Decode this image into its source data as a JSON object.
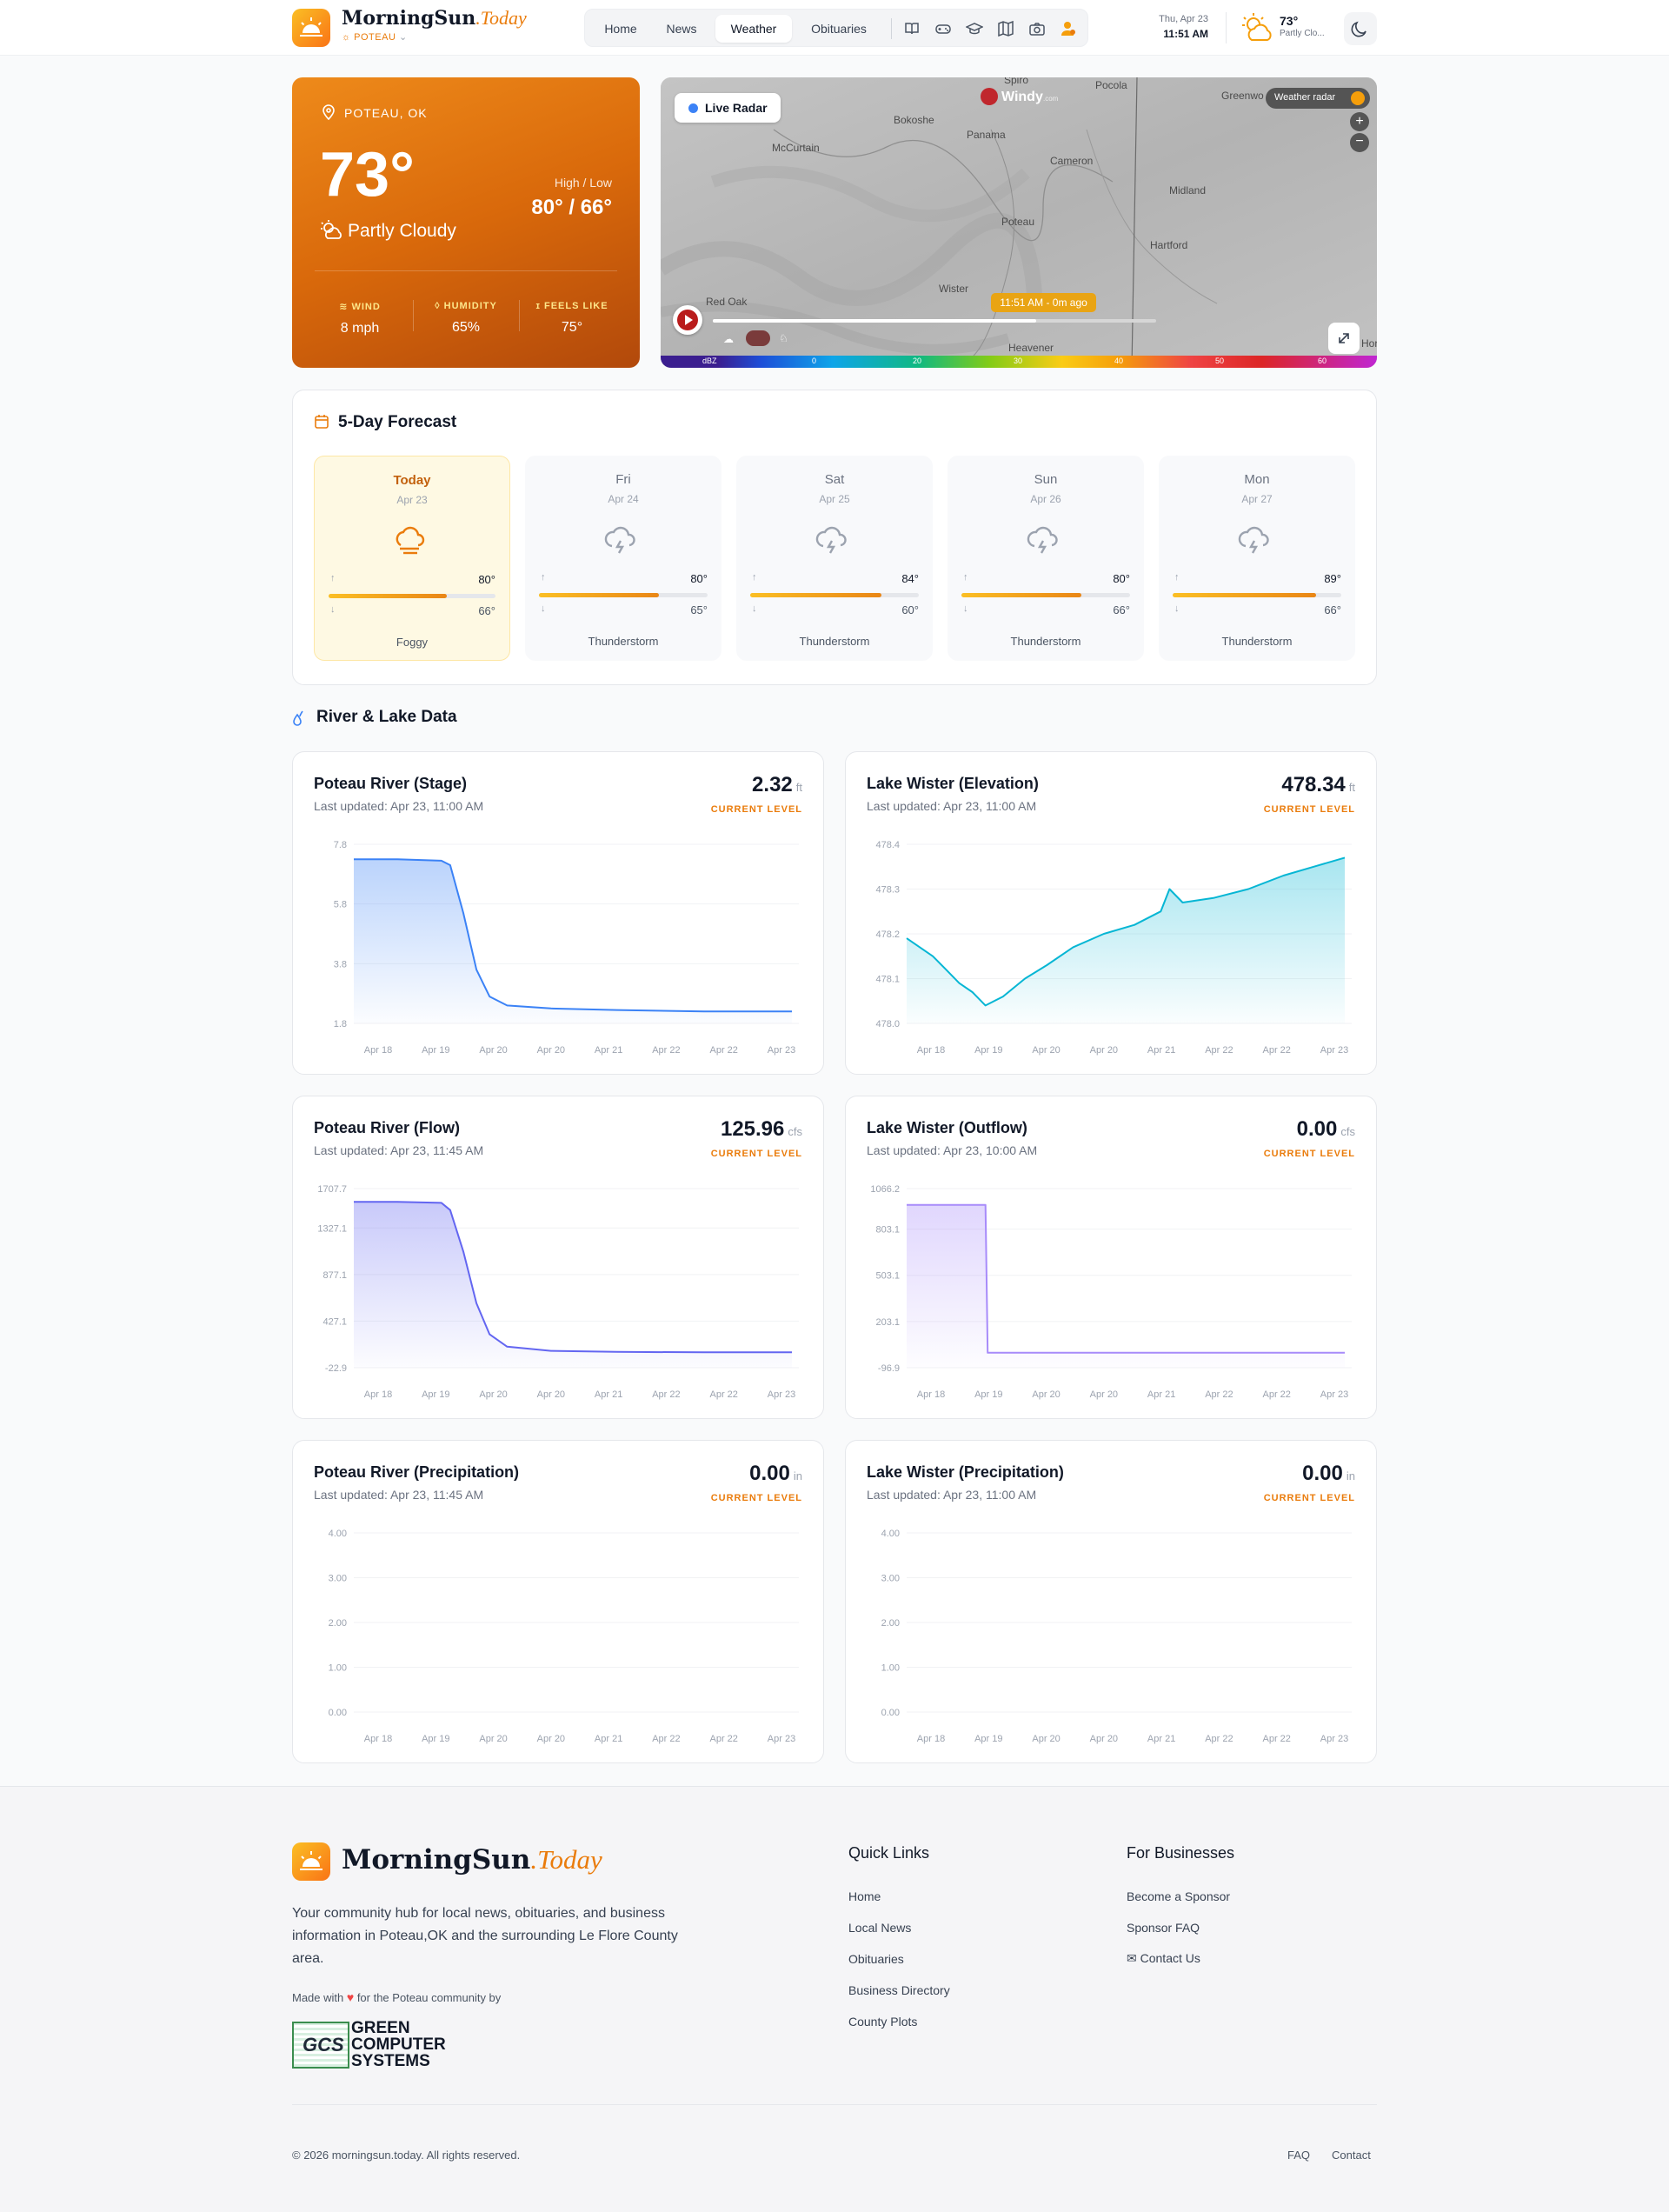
{
  "header": {
    "brand_main": "MorningSun",
    "brand_today": ".Today",
    "location": "POTEAU",
    "location_caret": "⌄",
    "nav": [
      {
        "label": "Home"
      },
      {
        "label": "News"
      },
      {
        "label": "Weather"
      },
      {
        "label": "Obituaries"
      }
    ],
    "nav_icons": [
      "book-icon",
      "game-controller-icon",
      "graduation-cap-icon",
      "map-icon",
      "camera-icon",
      "user-icon"
    ],
    "date": "Thu, Apr 23",
    "time": "11:51 AM",
    "temp": "73°",
    "condition": "Partly Clo...",
    "colors": {
      "accent": "#ea7c0c",
      "brand_gradient_start": "#fbbf24",
      "brand_gradient_end": "#f97316"
    }
  },
  "current": {
    "location": "POTEAU, OK",
    "temp": "73°",
    "condition": "Partly Cloudy",
    "hl_label": "High / Low",
    "hl_value": "80° / 66°",
    "wind_label": "WIND",
    "wind_value": "8 mph",
    "humidity_label": "HUMIDITY",
    "humidity_value": "65%",
    "feels_label": "FEELS LIKE",
    "feels_value": "75°"
  },
  "radar": {
    "live_label": "Live Radar",
    "windy": "Windy",
    "windy_suffix": ".com",
    "weather_radar": "Weather radar",
    "zoom_in": "+",
    "zoom_out": "−",
    "timestamp": "11:51 AM - 0m ago",
    "timeline_progress": 0.73,
    "places": [
      {
        "name": "Spiro"
      },
      {
        "name": "Pocola"
      },
      {
        "name": "Greenwo"
      },
      {
        "name": "Bokoshe"
      },
      {
        "name": "McCurtain"
      },
      {
        "name": "Panama"
      },
      {
        "name": "Cameron"
      },
      {
        "name": "Midland"
      },
      {
        "name": "Poteau"
      },
      {
        "name": "Hartford"
      },
      {
        "name": "Wister"
      },
      {
        "name": "Red Oak"
      },
      {
        "name": "Heavener"
      },
      {
        "name": "Hor"
      }
    ],
    "scale": {
      "unit": "dBZ",
      "ticks": [
        "0",
        "20",
        "30",
        "40",
        "50",
        "60"
      ]
    }
  },
  "forecast": {
    "title": "5-Day Forecast",
    "days": [
      {
        "name": "Today",
        "date": "Apr 23",
        "high": "80°",
        "low": "66°",
        "condition": "Foggy",
        "icon": "fog-icon",
        "fill": 0.71
      },
      {
        "name": "Fri",
        "date": "Apr 24",
        "high": "80°",
        "low": "65°",
        "condition": "Thunderstorm",
        "icon": "thunderstorm-icon",
        "fill": 0.71
      },
      {
        "name": "Sat",
        "date": "Apr 25",
        "high": "84°",
        "low": "60°",
        "condition": "Thunderstorm",
        "icon": "thunderstorm-icon",
        "fill": 0.78
      },
      {
        "name": "Sun",
        "date": "Apr 26",
        "high": "80°",
        "low": "66°",
        "condition": "Thunderstorm",
        "icon": "thunderstorm-icon",
        "fill": 0.71
      },
      {
        "name": "Mon",
        "date": "Apr 27",
        "high": "89°",
        "low": "66°",
        "condition": "Thunderstorm",
        "icon": "thunderstorm-icon",
        "fill": 0.85
      }
    ]
  },
  "river_section": {
    "title": "River & Lake Data"
  },
  "chart_data": [
    {
      "type": "area",
      "title": "Poteau River (Stage)",
      "updated": "Last updated: Apr 23, 11:00 AM",
      "value": "2.32",
      "unit": "ft",
      "current_label": "CURRENT LEVEL",
      "color": "#3b82f6",
      "ylim": [
        1.8,
        7.8
      ],
      "yticks": [
        "7.8",
        "5.8",
        "3.8",
        "1.8"
      ],
      "categories": [
        "Apr 18",
        "Apr 19",
        "Apr 20",
        "Apr 20",
        "Apr 21",
        "Apr 22",
        "Apr 22",
        "Apr 23"
      ],
      "x": [
        0,
        0.1,
        0.2,
        0.22,
        0.25,
        0.28,
        0.31,
        0.35,
        0.45,
        0.6,
        0.8,
        1.0
      ],
      "y": [
        7.3,
        7.3,
        7.25,
        7.1,
        5.5,
        3.6,
        2.7,
        2.4,
        2.3,
        2.25,
        2.2,
        2.2
      ]
    },
    {
      "type": "area",
      "title": "Lake Wister (Elevation)",
      "updated": "Last updated: Apr 23, 11:00 AM",
      "value": "478.34",
      "unit": "ft",
      "current_label": "CURRENT LEVEL",
      "color": "#06b6d4",
      "ylim": [
        478.0,
        478.4
      ],
      "yticks": [
        "478.4",
        "478.3",
        "478.2",
        "478.1",
        "478.0"
      ],
      "categories": [
        "Apr 18",
        "Apr 19",
        "Apr 20",
        "Apr 20",
        "Apr 21",
        "Apr 22",
        "Apr 22",
        "Apr 23"
      ],
      "x": [
        0,
        0.03,
        0.06,
        0.09,
        0.12,
        0.15,
        0.18,
        0.22,
        0.27,
        0.32,
        0.38,
        0.45,
        0.52,
        0.58,
        0.6,
        0.63,
        0.7,
        0.78,
        0.86,
        0.93,
        1.0
      ],
      "y": [
        478.19,
        478.17,
        478.15,
        478.12,
        478.09,
        478.07,
        478.04,
        478.06,
        478.1,
        478.13,
        478.17,
        478.2,
        478.22,
        478.25,
        478.3,
        478.27,
        478.28,
        478.3,
        478.33,
        478.35,
        478.37
      ]
    },
    {
      "type": "area",
      "title": "Poteau River (Flow)",
      "updated": "Last updated: Apr 23, 11:45 AM",
      "value": "125.96",
      "unit": "cfs",
      "current_label": "CURRENT LEVEL",
      "color": "#6366f1",
      "ylim": [
        -22.9,
        1707.7
      ],
      "yticks": [
        "1707.7",
        "1327.1",
        "877.1",
        "427.1",
        "-22.9"
      ],
      "categories": [
        "Apr 18",
        "Apr 19",
        "Apr 20",
        "Apr 20",
        "Apr 21",
        "Apr 22",
        "Apr 22",
        "Apr 23"
      ],
      "x": [
        0,
        0.1,
        0.2,
        0.22,
        0.25,
        0.28,
        0.31,
        0.35,
        0.45,
        0.6,
        0.8,
        1.0
      ],
      "y": [
        1580,
        1580,
        1570,
        1500,
        1100,
        600,
        300,
        180,
        140,
        130,
        126,
        126
      ]
    },
    {
      "type": "area",
      "title": "Lake Wister (Outflow)",
      "updated": "Last updated: Apr 23, 10:00 AM",
      "value": "0.00",
      "unit": "cfs",
      "current_label": "CURRENT LEVEL",
      "color": "#a78bfa",
      "ylim": [
        -96.9,
        1066.2
      ],
      "yticks": [
        "1066.2",
        "803.1",
        "503.1",
        "203.1",
        "-96.9"
      ],
      "categories": [
        "Apr 18",
        "Apr 19",
        "Apr 20",
        "Apr 20",
        "Apr 21",
        "Apr 22",
        "Apr 22",
        "Apr 23"
      ],
      "x": [
        0,
        0.18,
        0.185,
        0.2,
        1.0
      ],
      "y": [
        960,
        960,
        0,
        0,
        0
      ]
    },
    {
      "type": "area",
      "title": "Poteau River (Precipitation)",
      "updated": "Last updated: Apr 23, 11:45 AM",
      "value": "0.00",
      "unit": "in",
      "current_label": "CURRENT LEVEL",
      "color": "#60a5fa",
      "ylim": [
        0,
        4
      ],
      "yticks": [
        "4.00",
        "3.00",
        "2.00",
        "1.00",
        "0.00"
      ],
      "categories": [
        "Apr 18",
        "Apr 19",
        "Apr 20",
        "Apr 20",
        "Apr 21",
        "Apr 22",
        "Apr 22",
        "Apr 23"
      ],
      "x": [],
      "y": []
    },
    {
      "type": "area",
      "title": "Lake Wister (Precipitation)",
      "updated": "Last updated: Apr 23, 11:00 AM",
      "value": "0.00",
      "unit": "in",
      "current_label": "CURRENT LEVEL",
      "color": "#60a5fa",
      "ylim": [
        0,
        4
      ],
      "yticks": [
        "4.00",
        "3.00",
        "2.00",
        "1.00",
        "0.00"
      ],
      "categories": [
        "Apr 18",
        "Apr 19",
        "Apr 20",
        "Apr 20",
        "Apr 21",
        "Apr 22",
        "Apr 22",
        "Apr 23"
      ],
      "x": [],
      "y": []
    }
  ],
  "footer": {
    "brand_main": "MorningSun",
    "brand_today": ".Today",
    "description": "Your community hub for local news, obituaries, and business information in Poteau,OK and the surrounding Le Flore County area.",
    "made_with_pre": "Made with",
    "made_with_post": "for the Poteau community by",
    "gcs_line1": "GREEN",
    "gcs_line2": "COMPUTER",
    "gcs_line3": "SYSTEMS",
    "gcs_mark": "GCS",
    "quick_title": "Quick Links",
    "quick_links": [
      "Home",
      "Local News",
      "Obituaries",
      "Business Directory",
      "County Plots"
    ],
    "biz_title": "For Businesses",
    "biz_links": [
      "Become a Sponsor",
      "Sponsor FAQ",
      "Contact Us"
    ],
    "copyright": "© 2026 morningsun.today. All rights reserved.",
    "faq": "FAQ",
    "contact": "Contact"
  }
}
